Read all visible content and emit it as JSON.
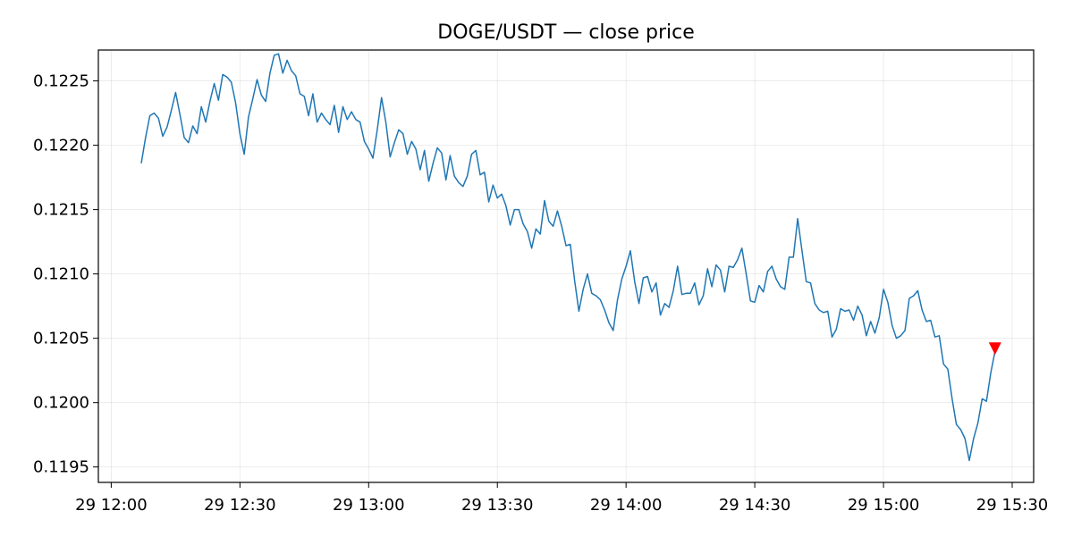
{
  "chart_data": {
    "type": "line",
    "title": "DOGE/USDT — close price",
    "xlabel": "",
    "ylabel": "",
    "grid": true,
    "line_color": "#1f77b4",
    "marker_color": "#ff0000",
    "x_ticks": [
      "29 12:00",
      "29 12:30",
      "29 13:00",
      "29 13:30",
      "29 14:00",
      "29 14:30",
      "29 15:00",
      "29 15:30"
    ],
    "x_tick_minutes": [
      0,
      30,
      60,
      90,
      120,
      150,
      180,
      210
    ],
    "xlim_minutes": [
      -3,
      215
    ],
    "y_ticks": [
      "0.1195",
      "0.1200",
      "0.1205",
      "0.1210",
      "0.1215",
      "0.1220",
      "0.1225"
    ],
    "y_tick_values": [
      0.1195,
      0.12,
      0.1205,
      0.121,
      0.1215,
      0.122,
      0.1225
    ],
    "ylim": [
      0.11938,
      0.12274
    ],
    "series": [
      {
        "x_minutes": [
          7,
          8,
          9,
          10,
          11,
          12,
          13,
          14,
          15,
          16,
          17,
          18,
          19,
          20,
          21,
          22,
          23,
          24,
          25,
          26,
          27,
          28,
          29,
          30,
          31,
          32,
          33,
          34,
          35,
          36,
          37,
          38,
          39,
          40,
          41,
          42,
          43,
          44,
          45,
          46,
          47,
          48,
          49,
          50,
          51,
          52,
          53,
          54,
          55,
          56,
          57,
          58,
          59,
          60,
          61,
          62,
          63,
          64,
          65,
          66,
          67,
          68,
          69,
          70,
          71,
          72,
          73,
          74,
          75,
          76,
          77,
          78,
          79,
          80,
          81,
          82,
          83,
          84,
          85,
          86,
          87,
          88,
          89,
          90,
          91,
          92,
          93,
          94,
          95,
          96,
          97,
          98,
          99,
          100,
          101,
          102,
          103,
          104,
          105,
          106,
          107,
          108,
          109,
          110,
          111,
          112,
          113,
          114,
          115,
          116,
          117,
          118,
          119,
          120,
          121,
          122,
          123,
          124,
          125,
          126,
          127,
          128,
          129,
          130,
          131,
          132,
          133,
          134,
          135,
          136,
          137,
          138,
          139,
          140,
          141,
          142,
          143,
          144,
          145,
          146,
          147,
          148,
          149,
          150,
          151,
          152,
          153,
          154,
          155,
          156,
          157,
          158,
          159,
          160,
          161,
          162,
          163,
          164,
          165,
          166,
          167,
          168,
          169,
          170,
          171,
          172,
          173,
          174,
          175,
          176,
          177,
          178,
          179,
          180,
          181,
          182,
          183,
          184,
          185,
          186,
          187,
          188,
          189,
          190,
          191,
          192,
          193,
          194,
          195,
          196,
          197,
          198,
          199,
          200,
          201,
          202,
          203,
          204,
          205,
          206
        ],
        "y": [
          0.12186,
          0.12206,
          0.12223,
          0.12225,
          0.12221,
          0.12207,
          0.12214,
          0.12227,
          0.12241,
          0.12224,
          0.12206,
          0.12202,
          0.12215,
          0.12209,
          0.1223,
          0.12218,
          0.12234,
          0.12248,
          0.12235,
          0.12255,
          0.12253,
          0.12249,
          0.12233,
          0.12209,
          0.12193,
          0.12222,
          0.12236,
          0.12251,
          0.12239,
          0.12234,
          0.12256,
          0.1227,
          0.12271,
          0.12256,
          0.12266,
          0.12258,
          0.12254,
          0.1224,
          0.12238,
          0.12223,
          0.1224,
          0.12218,
          0.12225,
          0.1222,
          0.12216,
          0.12231,
          0.1221,
          0.1223,
          0.1222,
          0.12226,
          0.1222,
          0.12218,
          0.12203,
          0.12197,
          0.1219,
          0.12212,
          0.12237,
          0.12218,
          0.12191,
          0.12202,
          0.12212,
          0.12209,
          0.12193,
          0.12203,
          0.12197,
          0.12181,
          0.12196,
          0.12172,
          0.12186,
          0.12198,
          0.12194,
          0.12173,
          0.12192,
          0.12176,
          0.12171,
          0.12168,
          0.12176,
          0.12193,
          0.12196,
          0.12177,
          0.12179,
          0.12156,
          0.12169,
          0.12159,
          0.12162,
          0.12153,
          0.12138,
          0.1215,
          0.1215,
          0.12139,
          0.12133,
          0.1212,
          0.12135,
          0.12131,
          0.12157,
          0.12141,
          0.12137,
          0.12149,
          0.12137,
          0.12122,
          0.12123,
          0.12095,
          0.12071,
          0.12088,
          0.121,
          0.12085,
          0.12083,
          0.1208,
          0.12072,
          0.12062,
          0.12056,
          0.1208,
          0.12096,
          0.12106,
          0.12118,
          0.12094,
          0.12077,
          0.12097,
          0.12098,
          0.12086,
          0.12093,
          0.12068,
          0.12077,
          0.12074,
          0.12087,
          0.12106,
          0.12084,
          0.12085,
          0.12085,
          0.12093,
          0.12076,
          0.12083,
          0.12104,
          0.1209,
          0.12107,
          0.12103,
          0.12086,
          0.12106,
          0.12105,
          0.12111,
          0.1212,
          0.121,
          0.12079,
          0.12078,
          0.12091,
          0.12086,
          0.12102,
          0.12106,
          0.12096,
          0.1209,
          0.12088,
          0.12113,
          0.12113,
          0.12143,
          0.12118,
          0.12094,
          0.12093,
          0.12077,
          0.12072,
          0.1207,
          0.12071,
          0.12051,
          0.12057,
          0.12073,
          0.12071,
          0.12072,
          0.12064,
          0.12075,
          0.12068,
          0.12052,
          0.12063,
          0.12054,
          0.12066,
          0.12088,
          0.12078,
          0.1206,
          0.1205,
          0.12052,
          0.12056,
          0.12081,
          0.12083,
          0.12087,
          0.12072,
          0.12063,
          0.12064,
          0.12051,
          0.12052,
          0.1203,
          0.12026,
          0.12003,
          0.11983,
          0.11979,
          0.11972,
          0.11955,
          0.11972,
          0.11984,
          0.12003,
          0.12001,
          0.12023,
          0.1204
        ]
      }
    ],
    "marker": {
      "type": "triangle-down",
      "x_minutes": 206,
      "y": 0.12042
    }
  }
}
